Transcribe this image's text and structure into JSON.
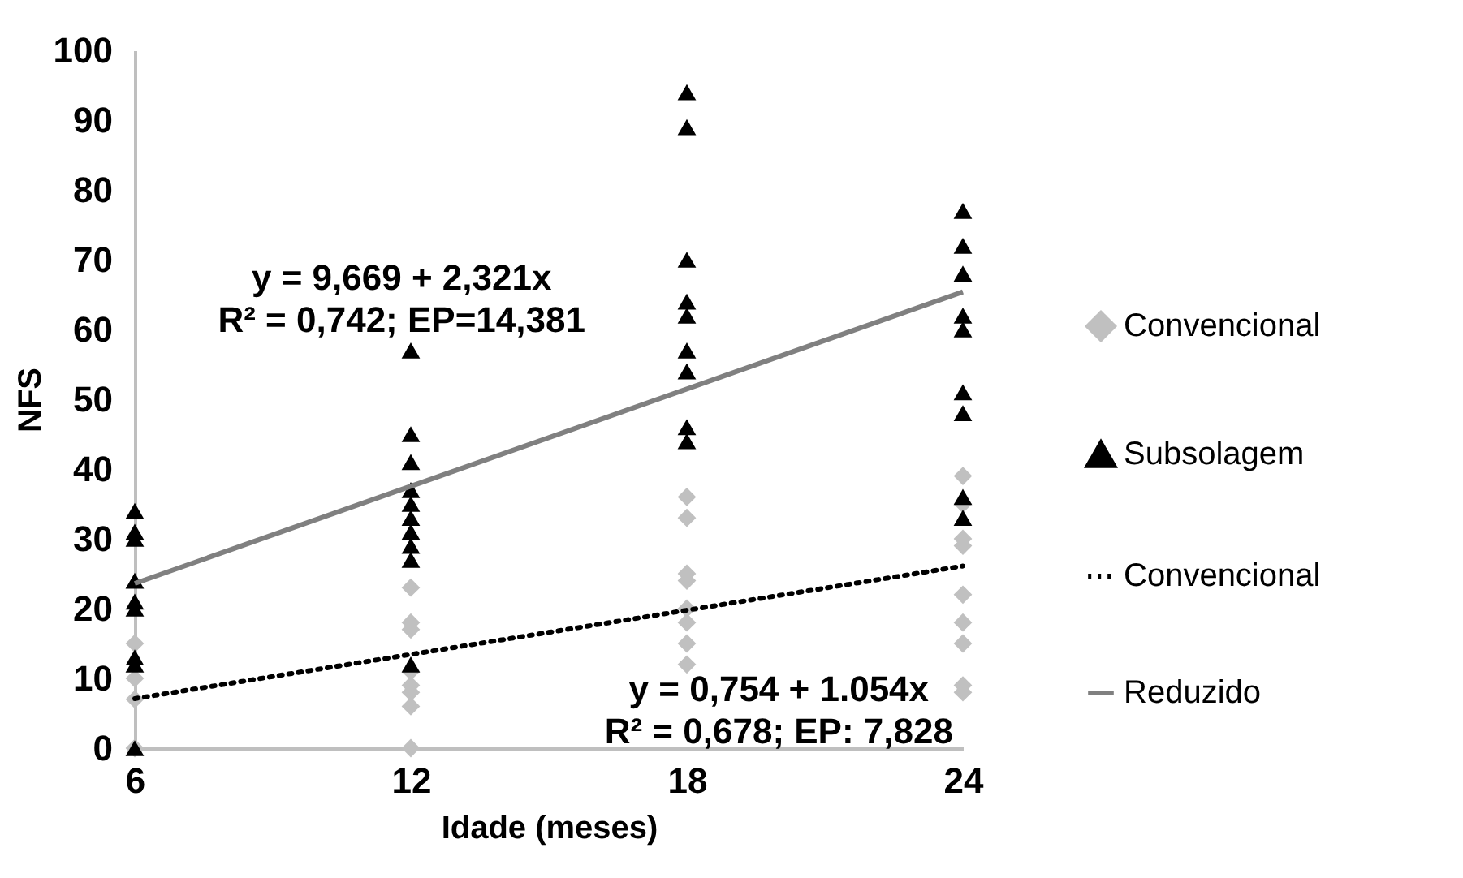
{
  "chart_data": {
    "type": "scatter",
    "xlabel": "Idade (meses)",
    "ylabel": "NFS",
    "xlim": [
      6,
      24
    ],
    "xticks": [
      6,
      12,
      18,
      24
    ],
    "ylim": [
      0,
      100
    ],
    "yticks": [
      0,
      10,
      20,
      30,
      40,
      50,
      60,
      70,
      80,
      90,
      100
    ],
    "grid": false,
    "legend": "right",
    "series": [
      {
        "name": "Convencional",
        "marker": "diamond",
        "color": "#c0c0c0",
        "x": [
          6,
          6,
          6,
          6,
          12,
          12,
          12,
          12,
          12,
          12,
          12,
          12,
          18,
          18,
          18,
          18,
          18,
          18,
          18,
          18,
          24,
          24,
          24,
          24,
          24,
          24,
          24,
          24,
          24
        ],
        "values": [
          15,
          10,
          7,
          0,
          23,
          18,
          17,
          11,
          9,
          8,
          6,
          0,
          36,
          33,
          25,
          24,
          20,
          18,
          15,
          12,
          39,
          35,
          30,
          29,
          22,
          18,
          15,
          9,
          8
        ]
      },
      {
        "name": "Subsolagem",
        "marker": "triangle",
        "color": "#000000",
        "x": [
          6,
          6,
          6,
          6,
          6,
          6,
          6,
          6,
          6,
          12,
          12,
          12,
          12,
          12,
          12,
          12,
          12,
          12,
          12,
          18,
          18,
          18,
          18,
          18,
          18,
          18,
          18,
          18,
          24,
          24,
          24,
          24,
          24,
          24,
          24,
          24,
          24
        ],
        "values": [
          34,
          31,
          30,
          24,
          21,
          20,
          13,
          12,
          0,
          57,
          45,
          41,
          37,
          35,
          33,
          31,
          29,
          27,
          12,
          94,
          89,
          70,
          64,
          62,
          57,
          54,
          46,
          44,
          77,
          72,
          68,
          62,
          60,
          51,
          48,
          36,
          33
        ]
      },
      {
        "name": "Convencional",
        "type": "line",
        "line_style": "dotted",
        "color": "#000000",
        "x": [
          6,
          24
        ],
        "values": [
          7.1,
          26.1
        ]
      },
      {
        "name": "Reduzido",
        "type": "line",
        "line_style": "solid",
        "color": "#808080",
        "x": [
          6,
          24
        ],
        "values": [
          23.6,
          65.4
        ]
      }
    ],
    "annotations": [
      "y = 9,669 + 2,321x\nR² = 0,742; EP=14,381",
      "y = 0,754 + 1.054x\nR² = 0,678; EP: 7,828"
    ]
  }
}
